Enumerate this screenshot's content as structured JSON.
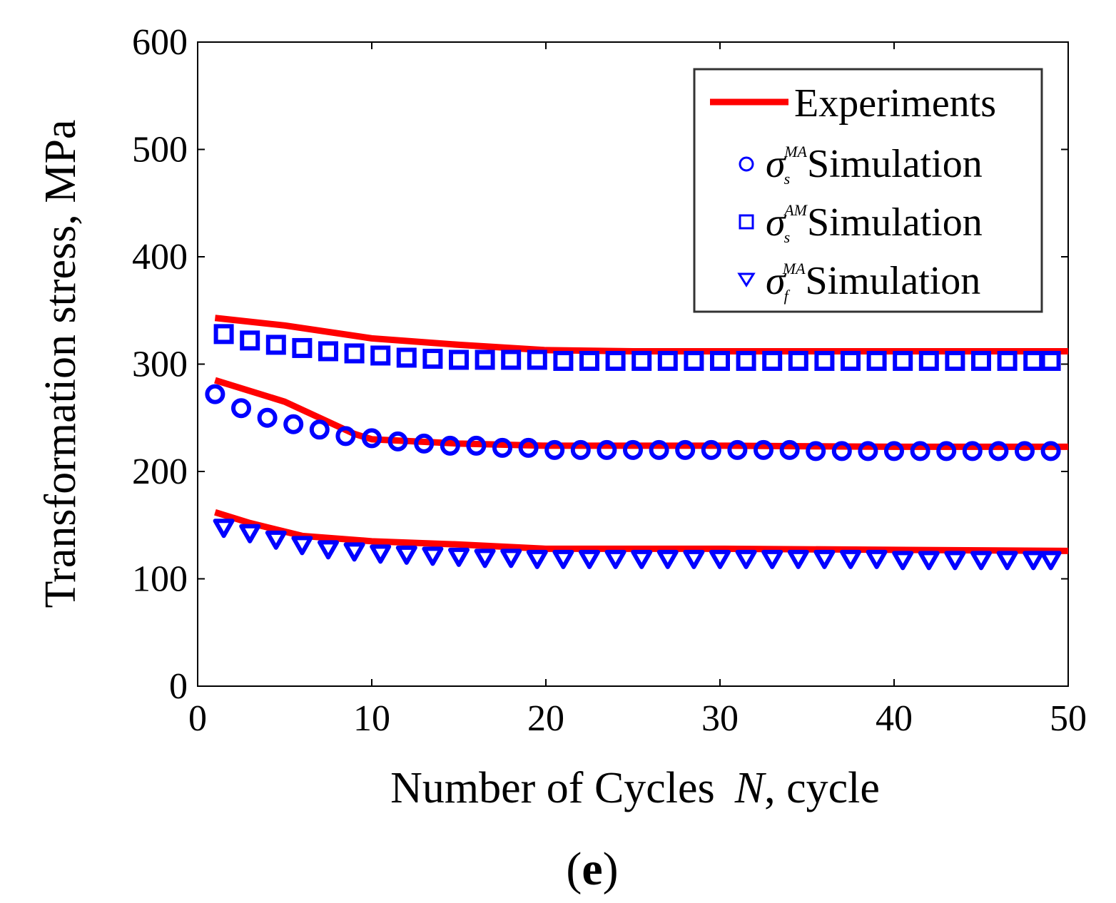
{
  "colors": {
    "experiment": "#ff0000",
    "simulation": "#0000ff"
  },
  "chart_data": {
    "type": "line",
    "caption": "e",
    "xlabel": {
      "prefix": "Number of Cycles",
      "var": "N",
      "suffix": ", cycle"
    },
    "ylabel": "Transformation stress, MPa",
    "xlim": [
      0,
      50
    ],
    "ylim": [
      0,
      600
    ],
    "xticks": [
      0,
      10,
      20,
      30,
      40,
      50
    ],
    "yticks": [
      0,
      100,
      200,
      300,
      400,
      500,
      600
    ],
    "legend": {
      "position": "top-right",
      "entries": [
        {
          "marker": "line",
          "label": "Experiments"
        },
        {
          "marker": "circle",
          "symbol": "σ",
          "sub": "s",
          "sup": "MA",
          "label": "Simulation"
        },
        {
          "marker": "square",
          "symbol": "σ",
          "sub": "s",
          "sup": "AM",
          "label": "Simulation"
        },
        {
          "marker": "triangle",
          "symbol": "σ",
          "sub": "f",
          "sup": "MA",
          "label": "Simulation"
        }
      ]
    },
    "experiments": [
      {
        "name": "σs^AM",
        "x": [
          1,
          5,
          10,
          15,
          20,
          25,
          30,
          40,
          50
        ],
        "y": [
          343,
          336,
          324,
          318,
          313,
          312,
          312,
          312,
          312
        ]
      },
      {
        "name": "σs^MA",
        "x": [
          1,
          5,
          9,
          10,
          15,
          20,
          30,
          40,
          50
        ],
        "y": [
          285,
          265,
          235,
          230,
          226,
          224,
          224,
          223,
          223
        ]
      },
      {
        "name": "σf^MA",
        "x": [
          1,
          3,
          6,
          10,
          15,
          20,
          30,
          40,
          50
        ],
        "y": [
          162,
          152,
          140,
          135,
          132,
          128,
          128,
          127,
          126
        ]
      }
    ],
    "simulations": [
      {
        "name": "σs^AM Simulation",
        "marker": "square",
        "x": [
          1.5,
          3,
          4.5,
          6,
          7.5,
          9,
          10.5,
          12,
          13.5,
          15,
          16.5,
          18,
          19.5,
          21,
          22.5,
          24,
          25.5,
          27,
          28.5,
          30,
          31.5,
          33,
          34.5,
          36,
          37.5,
          39,
          40.5,
          42,
          43.5,
          45,
          46.5,
          48,
          49
        ],
        "y": [
          328,
          322,
          318,
          315,
          312,
          310,
          308,
          306,
          305,
          304,
          304,
          304,
          304,
          303,
          303,
          303,
          303,
          303,
          303,
          303,
          303,
          303,
          303,
          303,
          303,
          303,
          303,
          303,
          303,
          303,
          303,
          303,
          303
        ]
      },
      {
        "name": "σs^MA Simulation",
        "marker": "circle",
        "x": [
          1,
          2.5,
          4,
          5.5,
          7,
          8.5,
          10,
          11.5,
          13,
          14.5,
          16,
          17.5,
          19,
          20.5,
          22,
          23.5,
          25,
          26.5,
          28,
          29.5,
          31,
          32.5,
          34,
          35.5,
          37,
          38.5,
          40,
          41.5,
          43,
          44.5,
          46,
          47.5,
          49
        ],
        "y": [
          272,
          259,
          250,
          244,
          239,
          233,
          231,
          228,
          226,
          224,
          224,
          222,
          222,
          220,
          220,
          220,
          220,
          220,
          220,
          220,
          220,
          220,
          220,
          219,
          219,
          219,
          219,
          219,
          219,
          219,
          219,
          219,
          219
        ]
      },
      {
        "name": "σf^MA Simulation",
        "marker": "triangle",
        "x": [
          1.5,
          3,
          4.5,
          6,
          7.5,
          9,
          10.5,
          12,
          13.5,
          15,
          16.5,
          18,
          19.5,
          21,
          22.5,
          24,
          25.5,
          27,
          28.5,
          30,
          31.5,
          33,
          34.5,
          36,
          37.5,
          39,
          40.5,
          42,
          43.5,
          45,
          46.5,
          48,
          49
        ],
        "y": [
          148,
          143,
          137,
          132,
          128,
          126,
          124,
          123,
          122,
          121,
          120,
          120,
          119,
          119,
          119,
          119,
          119,
          119,
          119,
          119,
          119,
          119,
          119,
          119,
          119,
          119,
          118,
          118,
          118,
          118,
          118,
          118,
          118
        ]
      }
    ]
  }
}
